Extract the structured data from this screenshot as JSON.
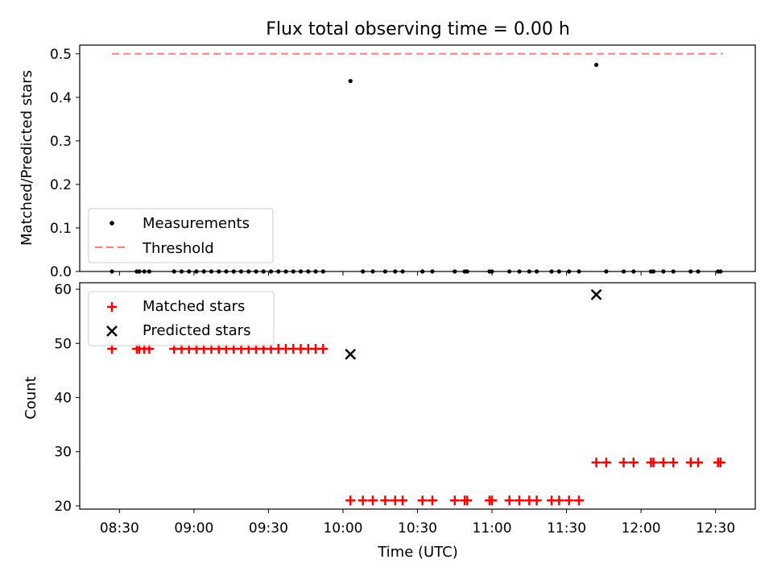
{
  "chart_data": [
    {
      "type": "scatter",
      "title": "Flux total observing time = 0.00 h",
      "xlabel": "",
      "ylabel": "Matched/Predicted stars",
      "ylim": [
        0,
        0.52
      ],
      "yticks": [
        0.0,
        0.1,
        0.2,
        0.3,
        0.4,
        0.5
      ],
      "ytick_labels": [
        "0.0",
        "0.1",
        "0.2",
        "0.3",
        "0.4",
        "0.5"
      ],
      "x_time": [
        "08:27",
        "08:37",
        "08:38",
        "08:40",
        "08:42",
        "08:52",
        "08:55",
        "08:58",
        "09:01",
        "09:04",
        "09:07",
        "09:10",
        "09:13",
        "09:16",
        "09:19",
        "09:22",
        "09:25",
        "09:28",
        "09:31",
        "09:34",
        "09:37",
        "09:40",
        "09:43",
        "09:46",
        "09:49",
        "09:52",
        "10:03",
        "10:08",
        "10:12",
        "10:17",
        "10:21",
        "10:24",
        "10:32",
        "10:36",
        "10:45",
        "10:49",
        "10:50",
        "10:59",
        "11:00",
        "11:07",
        "11:11",
        "11:15",
        "11:18",
        "11:24",
        "11:27",
        "11:31",
        "11:35",
        "11:42",
        "11:46",
        "11:53",
        "11:57",
        "12:04",
        "12:05",
        "12:09",
        "12:13",
        "12:20",
        "12:23",
        "12:31",
        "12:32"
      ],
      "series": [
        {
          "name": "Measurements",
          "values": [
            0,
            0,
            0,
            0,
            0,
            0,
            0,
            0,
            0,
            0,
            0,
            0,
            0,
            0,
            0,
            0,
            0,
            0,
            0,
            0,
            0,
            0,
            0,
            0,
            0,
            0,
            0.4375,
            0,
            0,
            0,
            0,
            0,
            0,
            0,
            0,
            0,
            0,
            0,
            0,
            0,
            0,
            0,
            0,
            0,
            0,
            0,
            0,
            0.4746,
            0,
            0,
            0,
            0,
            0,
            0,
            0,
            0,
            0,
            0,
            0
          ],
          "color": "#000000"
        },
        {
          "name": "Threshold",
          "x_time": [
            "08:27",
            "12:33"
          ],
          "values": [
            0.5,
            0.5
          ],
          "color": "#ff7f7f",
          "style": "dashed"
        }
      ],
      "legend": [
        "Measurements",
        "Threshold"
      ],
      "legend_position": "lower-left"
    },
    {
      "type": "scatter",
      "title": "",
      "xlabel": "Time (UTC)",
      "ylabel": "Count",
      "ylim": [
        19.4,
        61.2
      ],
      "yticks": [
        20,
        30,
        40,
        50,
        60
      ],
      "ytick_labels": [
        "20",
        "30",
        "40",
        "50",
        "60"
      ],
      "xticks": [
        "08:30",
        "09:00",
        "09:30",
        "10:00",
        "10:30",
        "11:00",
        "11:30",
        "12:00",
        "12:30"
      ],
      "x_time": [
        "08:27",
        "08:37",
        "08:38",
        "08:40",
        "08:42",
        "08:52",
        "08:55",
        "08:58",
        "09:01",
        "09:04",
        "09:07",
        "09:10",
        "09:13",
        "09:16",
        "09:19",
        "09:22",
        "09:25",
        "09:28",
        "09:31",
        "09:34",
        "09:37",
        "09:40",
        "09:43",
        "09:46",
        "09:49",
        "09:52",
        "10:03",
        "10:08",
        "10:12",
        "10:17",
        "10:21",
        "10:24",
        "10:32",
        "10:36",
        "10:45",
        "10:49",
        "10:50",
        "10:59",
        "11:00",
        "11:07",
        "11:11",
        "11:15",
        "11:18",
        "11:24",
        "11:27",
        "11:31",
        "11:35",
        "11:42",
        "11:46",
        "11:53",
        "11:57",
        "12:04",
        "12:05",
        "12:09",
        "12:13",
        "12:20",
        "12:23",
        "12:31",
        "12:32"
      ],
      "series": [
        {
          "name": "Matched stars",
          "values": [
            49,
            49,
            49,
            49,
            49,
            49,
            49,
            49,
            49,
            49,
            49,
            49,
            49,
            49,
            49,
            49,
            49,
            49,
            49,
            49,
            49,
            49,
            49,
            49,
            49,
            49,
            21,
            21,
            21,
            21,
            21,
            21,
            21,
            21,
            21,
            21,
            21,
            21,
            21,
            21,
            21,
            21,
            21,
            21,
            21,
            21,
            21,
            28,
            28,
            28,
            28,
            28,
            28,
            28,
            28,
            28,
            28,
            28,
            28
          ],
          "color": "#ff0000",
          "marker": "+"
        },
        {
          "name": "Predicted stars",
          "points": [
            {
              "x_time": "10:03",
              "value": 48
            },
            {
              "x_time": "11:42",
              "value": 59
            }
          ],
          "color": "#000000",
          "marker": "x"
        }
      ],
      "legend": [
        "Matched stars",
        "Predicted stars"
      ],
      "legend_position": "upper-left"
    }
  ]
}
